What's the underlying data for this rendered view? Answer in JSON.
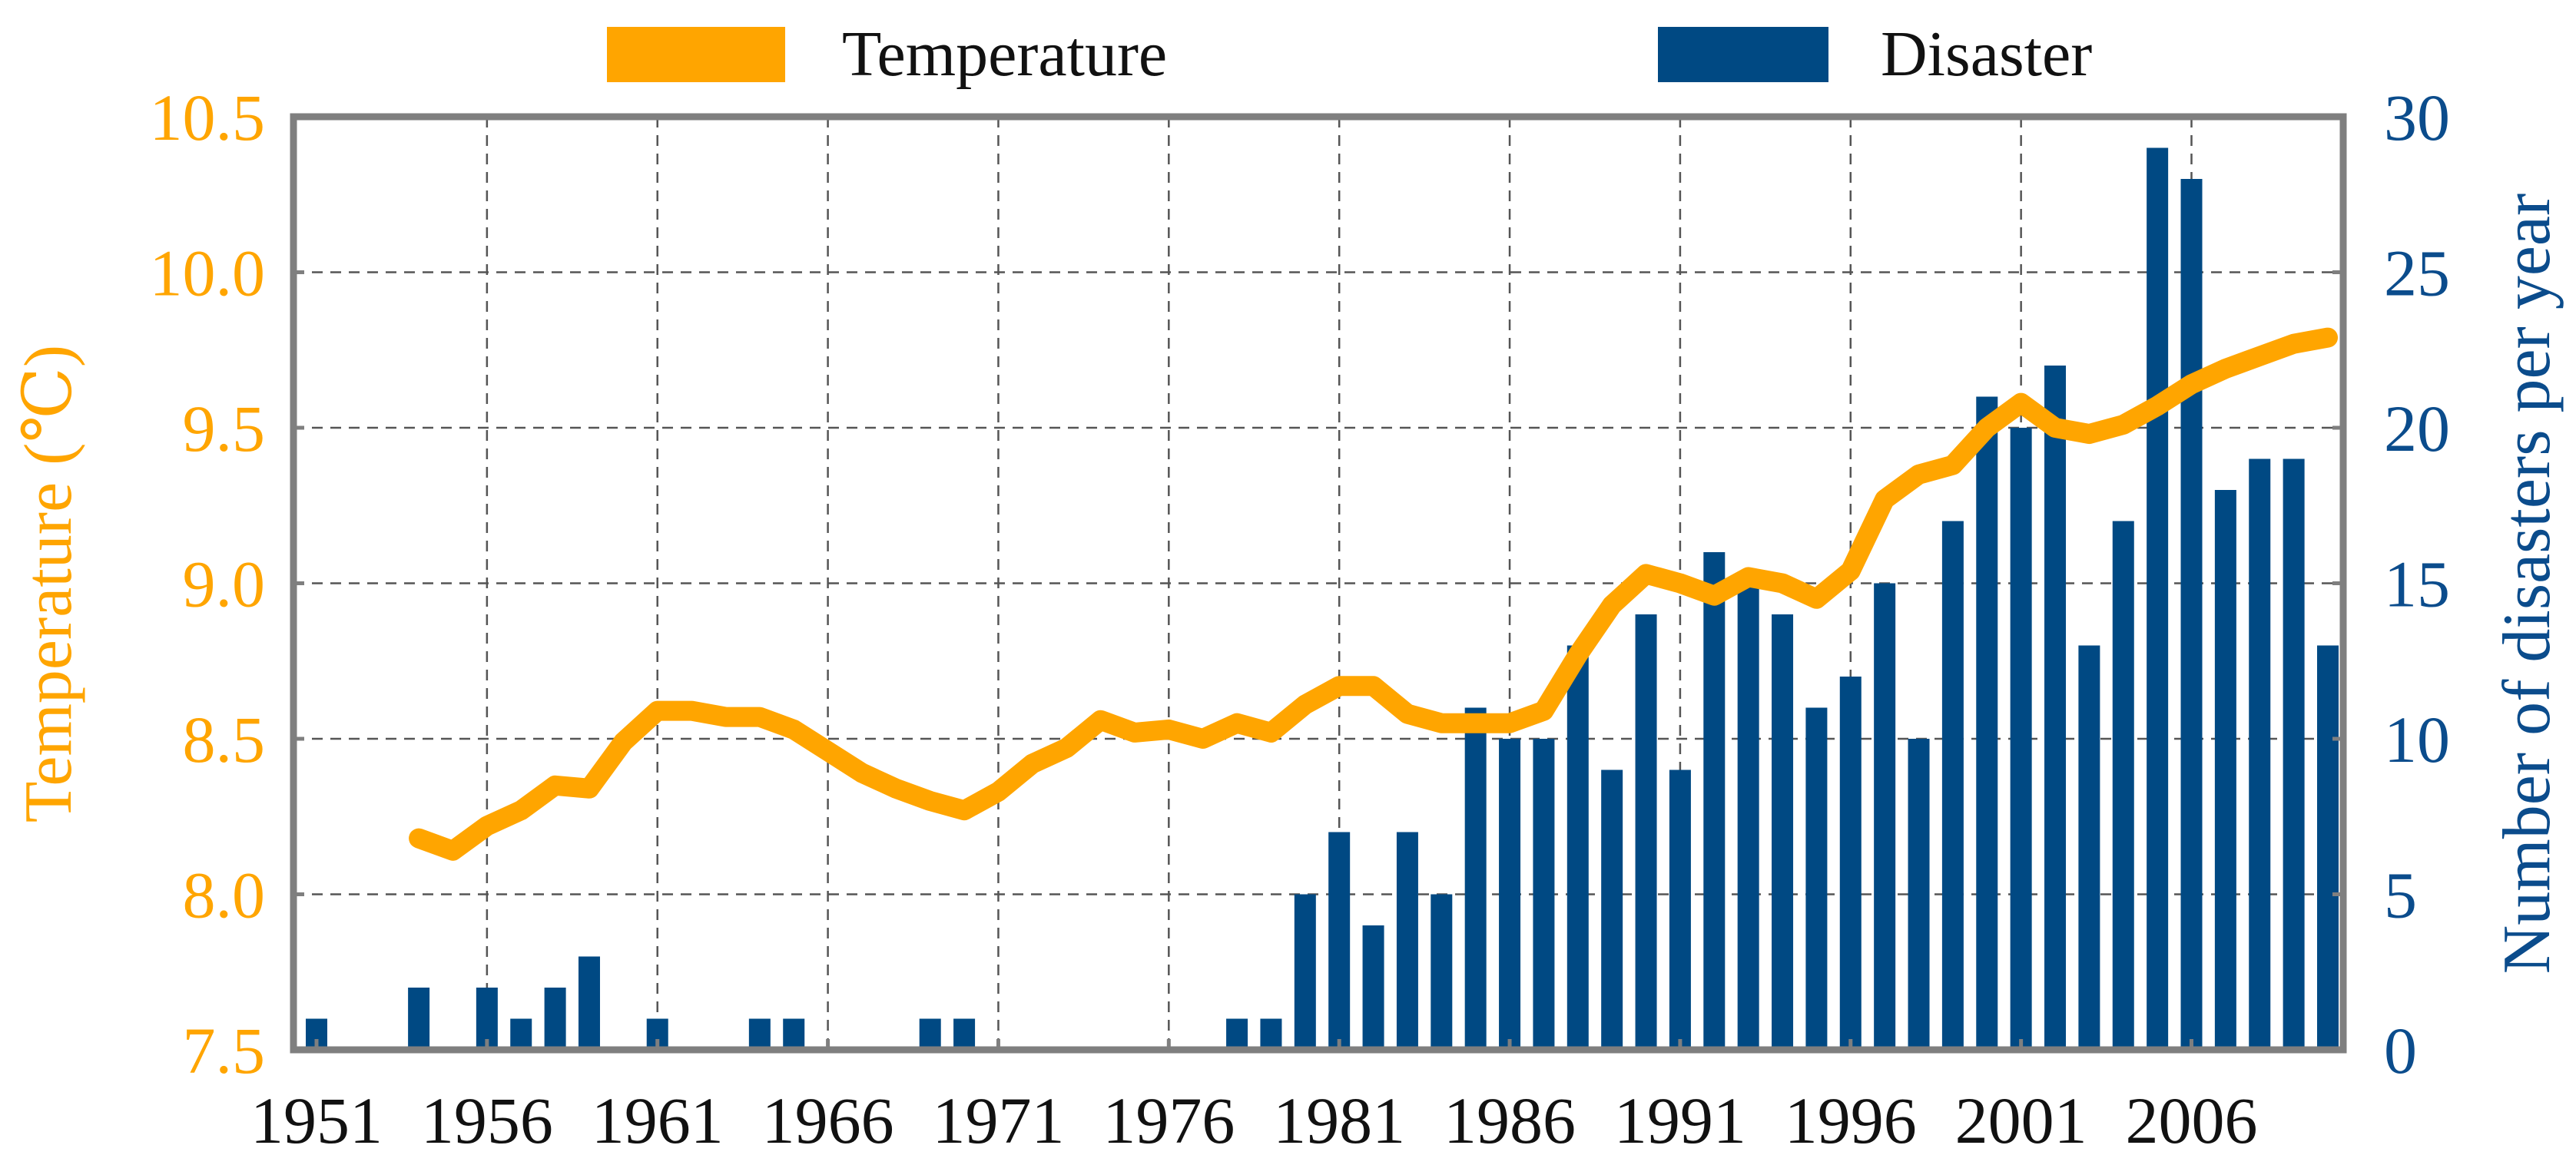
{
  "chart_data": {
    "type": "bar+line",
    "title": "",
    "xlabel": "",
    "ylabel_left": "Temperature (℃)",
    "ylabel_right": "Number of disasters  per year",
    "x_tick_labels": [
      "1951",
      "1956",
      "1961",
      "1966",
      "1971",
      "1976",
      "1981",
      "1986",
      "1991",
      "1996",
      "2001",
      "2006"
    ],
    "ylim_left": [
      7.5,
      10.5
    ],
    "yticks_left": [
      "7.5",
      "8.0",
      "8.5",
      "9.0",
      "9.5",
      "10.0",
      "10.5"
    ],
    "ylim_right": [
      0,
      30
    ],
    "yticks_right": [
      "0",
      "5",
      "10",
      "15",
      "20",
      "25",
      "30"
    ],
    "legend": {
      "placement": "top",
      "temperature_label": "Temperature",
      "disaster_label": "Disaster"
    },
    "colors": {
      "temperature": "#FFA500",
      "disaster": "#004983",
      "axis": "#7f7f7f",
      "grid": "#555555",
      "left_ticks": "#FFA500",
      "right_ticks": "#0B4C8C"
    },
    "x_years": [
      1951,
      1952,
      1953,
      1954,
      1955,
      1956,
      1957,
      1958,
      1959,
      1960,
      1961,
      1962,
      1963,
      1964,
      1965,
      1966,
      1967,
      1968,
      1969,
      1970,
      1971,
      1972,
      1973,
      1974,
      1975,
      1976,
      1977,
      1978,
      1979,
      1980,
      1981,
      1982,
      1983,
      1984,
      1985,
      1986,
      1987,
      1988,
      1989,
      1990,
      1991,
      1992,
      1993,
      1994,
      1995,
      1996,
      1997,
      1998,
      1999,
      2000,
      2001,
      2002,
      2003,
      2004,
      2005,
      2006,
      2007,
      2008,
      2009,
      2010
    ],
    "series": [
      {
        "name": "Disaster",
        "type": "bar",
        "axis": "right",
        "values": [
          1,
          0,
          0,
          2,
          0,
          2,
          1,
          2,
          3,
          0,
          1,
          0,
          0,
          1,
          1,
          0,
          0,
          0,
          1,
          1,
          0,
          0,
          0,
          0,
          0,
          0,
          0,
          1,
          1,
          5,
          7,
          4,
          7,
          5,
          11,
          10,
          10,
          13,
          9,
          14,
          9,
          16,
          15,
          14,
          11,
          12,
          15,
          10,
          17,
          21,
          20,
          22,
          13,
          17,
          29,
          28,
          18,
          19,
          19,
          13
        ]
      },
      {
        "name": "Temperature",
        "type": "line",
        "axis": "left",
        "years": [
          1954,
          1955,
          1956,
          1957,
          1958,
          1959,
          1960,
          1961,
          1962,
          1963,
          1964,
          1965,
          1966,
          1967,
          1968,
          1969,
          1970,
          1971,
          1972,
          1973,
          1974,
          1975,
          1976,
          1977,
          1978,
          1979,
          1980,
          1981,
          1982,
          1983,
          1984,
          1985,
          1986,
          1987,
          1988,
          1989,
          1990,
          1991,
          1992,
          1993,
          1994,
          1995,
          1996,
          1997,
          1998,
          1999,
          2000,
          2001,
          2002,
          2003,
          2004,
          2005,
          2006,
          2007,
          2008,
          2009,
          2010
        ],
        "values": [
          8.18,
          8.14,
          8.22,
          8.27,
          8.35,
          8.34,
          8.49,
          8.59,
          8.59,
          8.57,
          8.57,
          8.53,
          8.46,
          8.39,
          8.34,
          8.3,
          8.27,
          8.33,
          8.42,
          8.47,
          8.56,
          8.52,
          8.53,
          8.5,
          8.55,
          8.52,
          8.61,
          8.67,
          8.67,
          8.58,
          8.55,
          8.55,
          8.55,
          8.59,
          8.77,
          8.93,
          9.03,
          9.0,
          8.96,
          9.02,
          9.0,
          8.95,
          9.04,
          9.27,
          9.35,
          9.38,
          9.5,
          9.58,
          9.5,
          9.48,
          9.51,
          9.57,
          9.64,
          9.69,
          9.73,
          9.77,
          9.79
        ]
      }
    ]
  }
}
